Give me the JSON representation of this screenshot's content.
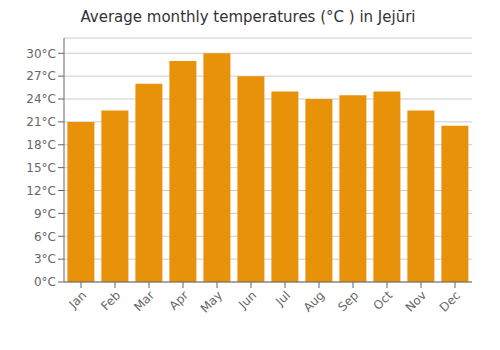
{
  "chart_data": {
    "type": "bar",
    "title": "Average monthly temperatures (°C ) in Jejūri",
    "categories": [
      "Jan",
      "Feb",
      "Mar",
      "Apr",
      "May",
      "Jun",
      "Jul",
      "Aug",
      "Sep",
      "Oct",
      "Nov",
      "Dec"
    ],
    "values": [
      21.0,
      22.5,
      26.0,
      29.0,
      30.0,
      27.0,
      25.0,
      24.0,
      24.5,
      25.0,
      22.5,
      20.5
    ],
    "color": "#E8920A",
    "ylim": [
      0,
      32
    ],
    "yticks": [
      {
        "value": 0,
        "label": "0°C"
      },
      {
        "value": 3,
        "label": "3°C"
      },
      {
        "value": 6,
        "label": "6°C"
      },
      {
        "value": 9,
        "label": "9°C"
      },
      {
        "value": 12,
        "label": "12°C"
      },
      {
        "value": 15,
        "label": "15°C"
      },
      {
        "value": 18,
        "label": "18°C"
      },
      {
        "value": 21,
        "label": "21°C"
      },
      {
        "value": 24,
        "label": "24°C"
      },
      {
        "value": 27,
        "label": "27°C"
      },
      {
        "value": 30,
        "label": "30°C"
      }
    ],
    "grid": true
  }
}
